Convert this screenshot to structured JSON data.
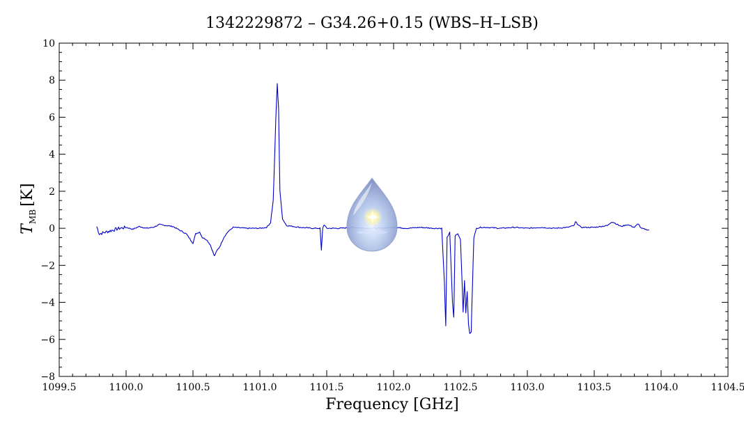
{
  "chart_data": {
    "type": "line",
    "title": "1342229872 – G34.26+0.15 (WBS–H–LSB)",
    "xlabel": "Frequency [GHz]",
    "ylabel_main": "T",
    "ylabel_sub": "MB",
    "ylabel_unit": "[K]",
    "xlim": [
      1099.5,
      1104.5
    ],
    "ylim": [
      -8,
      10
    ],
    "x_ticks": [
      1099.5,
      1100.0,
      1100.5,
      1101.0,
      1101.5,
      1102.0,
      1102.5,
      1103.0,
      1103.5,
      1104.0,
      1104.5
    ],
    "x_tick_labels": [
      "1099.5",
      "1100.0",
      "1100.5",
      "1101.0",
      "1101.5",
      "1102.0",
      "1102.5",
      "1103.0",
      "1103.5",
      "1104.0",
      "1104.5"
    ],
    "y_ticks": [
      -8,
      -6,
      -4,
      -2,
      0,
      2,
      4,
      6,
      8,
      10
    ],
    "y_tick_labels": [
      "−8",
      "−6",
      "−4",
      "−2",
      "0",
      "2",
      "4",
      "6",
      "8",
      "10"
    ],
    "grid": false,
    "series": [
      {
        "color": "#0000cc",
        "x": [
          1099.78,
          1099.8,
          1099.85,
          1099.9,
          1099.95,
          1100.0,
          1100.05,
          1100.1,
          1100.15,
          1100.2,
          1100.25,
          1100.3,
          1100.35,
          1100.4,
          1100.45,
          1100.5,
          1100.52,
          1100.55,
          1100.57,
          1100.6,
          1100.63,
          1100.66,
          1100.68,
          1100.7,
          1100.73,
          1100.76,
          1100.8,
          1100.9,
          1101.0,
          1101.05,
          1101.08,
          1101.1,
          1101.12,
          1101.13,
          1101.14,
          1101.15,
          1101.17,
          1101.2,
          1101.25,
          1101.3,
          1101.4,
          1101.45,
          1101.46,
          1101.47,
          1101.48,
          1101.5,
          1101.6,
          1101.7,
          1101.8,
          1101.9,
          1102.0,
          1102.1,
          1102.2,
          1102.3,
          1102.36,
          1102.38,
          1102.39,
          1102.4,
          1102.42,
          1102.44,
          1102.45,
          1102.46,
          1102.48,
          1102.5,
          1102.52,
          1102.53,
          1102.54,
          1102.55,
          1102.56,
          1102.57,
          1102.58,
          1102.59,
          1102.6,
          1102.62,
          1102.65,
          1102.7,
          1102.8,
          1102.9,
          1103.0,
          1103.1,
          1103.2,
          1103.3,
          1103.35,
          1103.36,
          1103.4,
          1103.5,
          1103.6,
          1103.63,
          1103.65,
          1103.7,
          1103.75,
          1103.8,
          1103.83,
          1103.85,
          1103.88,
          1103.91
        ],
        "y": [
          0.1,
          -0.3,
          -0.2,
          -0.1,
          0.0,
          0.05,
          -0.05,
          0.1,
          0.0,
          0.05,
          0.2,
          0.15,
          0.1,
          -0.1,
          -0.3,
          -0.8,
          -0.3,
          -0.2,
          -0.5,
          -0.6,
          -0.9,
          -1.5,
          -1.2,
          -1.0,
          -0.5,
          -0.2,
          0.05,
          0.0,
          0.0,
          0.05,
          0.3,
          1.5,
          6.0,
          7.8,
          6.5,
          2.0,
          0.5,
          0.15,
          0.1,
          0.05,
          0.0,
          0.0,
          -1.2,
          0.0,
          0.2,
          0.0,
          0.0,
          0.05,
          0.0,
          0.0,
          0.05,
          0.0,
          0.05,
          0.0,
          0.0,
          -3.0,
          -5.3,
          -0.5,
          -0.2,
          -4.0,
          -4.8,
          -0.4,
          -0.3,
          -0.6,
          -4.5,
          -2.8,
          -4.6,
          -3.4,
          -5.2,
          -5.7,
          -5.6,
          -3.0,
          -0.5,
          0.0,
          0.05,
          0.05,
          0.0,
          0.05,
          0.0,
          0.05,
          0.0,
          0.05,
          0.15,
          0.35,
          0.05,
          0.05,
          0.15,
          0.35,
          0.3,
          0.1,
          0.2,
          0.05,
          0.25,
          0.0,
          -0.05,
          -0.1
        ]
      }
    ]
  },
  "logo": {
    "name": "water-drop-logo"
  }
}
